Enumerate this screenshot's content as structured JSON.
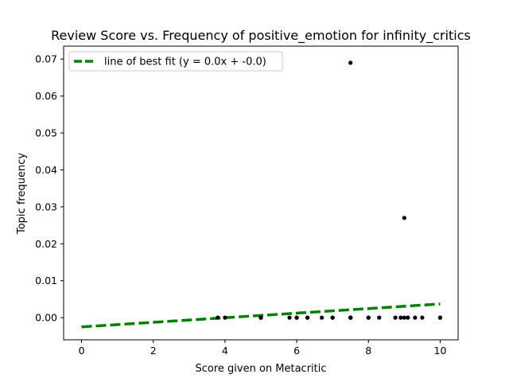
{
  "chart_data": {
    "type": "scatter",
    "title": "Review Score vs. Frequency of positive_emotion for infinity_critics",
    "xlabel": "Score given on Metacritic",
    "ylabel": "Topic frequency",
    "xlim": [
      -0.5,
      10.5
    ],
    "ylim": [
      -0.006,
      0.0735
    ],
    "xticks": [
      0,
      2,
      4,
      6,
      8,
      10
    ],
    "xtick_labels": [
      "0",
      "2",
      "4",
      "6",
      "8",
      "10"
    ],
    "yticks": [
      0.0,
      0.01,
      0.02,
      0.03,
      0.04,
      0.05,
      0.06,
      0.07
    ],
    "ytick_labels": [
      "0.00",
      "0.01",
      "0.02",
      "0.03",
      "0.04",
      "0.05",
      "0.06",
      "0.07"
    ],
    "grid": false,
    "legend_position": "top-left",
    "series": [
      {
        "kind": "points",
        "color": "#000000",
        "points": [
          [
            3.8,
            0
          ],
          [
            4.0,
            0
          ],
          [
            5.0,
            0
          ],
          [
            5.0,
            0
          ],
          [
            5.0,
            0
          ],
          [
            5.8,
            0
          ],
          [
            6.0,
            0
          ],
          [
            6.0,
            0
          ],
          [
            6.3,
            0
          ],
          [
            6.3,
            0
          ],
          [
            6.7,
            0
          ],
          [
            7.0,
            0
          ],
          [
            7.0,
            0
          ],
          [
            7.5,
            0
          ],
          [
            7.5,
            0
          ],
          [
            7.5,
            0
          ],
          [
            8.0,
            0
          ],
          [
            8.0,
            0
          ],
          [
            8.3,
            0
          ],
          [
            8.75,
            0
          ],
          [
            8.9,
            0
          ],
          [
            9.0,
            0
          ],
          [
            9.1,
            0
          ],
          [
            9.3,
            0
          ],
          [
            9.5,
            0
          ],
          [
            10.0,
            0
          ],
          [
            10.0,
            0
          ],
          [
            7.5,
            0.069
          ],
          [
            9.0,
            0.027
          ]
        ]
      },
      {
        "kind": "line",
        "name": "line of best fit (y = 0.0x + -0.0)",
        "color": "#008000",
        "dashed": true,
        "points": [
          [
            0,
            -0.0025
          ],
          [
            10,
            0.0037
          ]
        ]
      }
    ]
  }
}
